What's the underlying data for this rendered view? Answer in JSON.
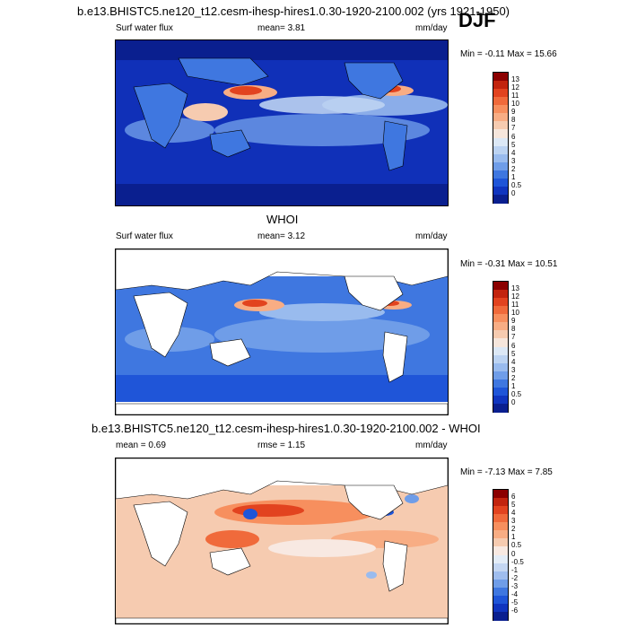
{
  "season": "DJF",
  "panels": [
    {
      "title": "b.e13.BHISTC5.ne120_t12.cesm-ihesp-hires1.0.30-1920-2100.002 (yrs 1921-1950)",
      "left_label": "Surf water flux",
      "mid_label": "mean=   3.81",
      "units": "mm/day",
      "minmax": "Min =  -0.11 Max =   15.66",
      "colorbar_labels": [
        "13",
        "12",
        "11",
        "10",
        "9",
        "8",
        "7",
        "6",
        "5",
        "4",
        "3",
        "2",
        "1",
        "0.5",
        "0"
      ],
      "colorbar_colors": [
        "#8b0000",
        "#c2240e",
        "#e2431f",
        "#f06a3b",
        "#f78f5e",
        "#f8ad84",
        "#f6cbb0",
        "#f6e6dc",
        "#dce8f6",
        "#bcd3f2",
        "#99bbee",
        "#6f9de8",
        "#3f77e0",
        "#1f55d8",
        "#1035bf",
        "#0a1f8f"
      ],
      "colorbar_fraction": 1.0
    },
    {
      "title": "WHOI",
      "left_label": "Surf water flux",
      "mid_label": "mean=   3.12",
      "units": "mm/day",
      "minmax": "Min =  -0.31 Max =   10.51",
      "colorbar_labels": [
        "13",
        "12",
        "11",
        "10",
        "9",
        "8",
        "7",
        "6",
        "5",
        "4",
        "3",
        "2",
        "1",
        "0.5",
        "0"
      ],
      "colorbar_colors": [
        "#8b0000",
        "#c2240e",
        "#e2431f",
        "#f06a3b",
        "#f78f5e",
        "#f8ad84",
        "#f6cbb0",
        "#f6e6dc",
        "#dce8f6",
        "#bcd3f2",
        "#99bbee",
        "#6f9de8",
        "#3f77e0",
        "#1f55d8",
        "#1035bf",
        "#0a1f8f"
      ],
      "colorbar_fraction": 1.0
    },
    {
      "title": "b.e13.BHISTC5.ne120_t12.cesm-ihesp-hires1.0.30-1920-2100.002 - WHOI",
      "left_label": "mean =   0.69",
      "mid_label": "rmse =   1.15",
      "units": "mm/day",
      "minmax": "Min =  -7.13 Max =   7.85",
      "colorbar_labels": [
        "6",
        "5",
        "4",
        "3",
        "2",
        "1",
        "0.5",
        "0",
        "-0.5",
        "-1",
        "-2",
        "-3",
        "-4",
        "-5",
        "-6"
      ],
      "colorbar_colors": [
        "#8b0000",
        "#c2240e",
        "#e2431f",
        "#f06a3b",
        "#f78f5e",
        "#f8ad84",
        "#f6cbb0",
        "#f8e9e2",
        "#e3ecf7",
        "#c4d6f2",
        "#9fbdee",
        "#6f9de8",
        "#3f77e0",
        "#1f55d8",
        "#1035bf",
        "#0a1f8f"
      ],
      "colorbar_fraction": 1.0
    }
  ]
}
